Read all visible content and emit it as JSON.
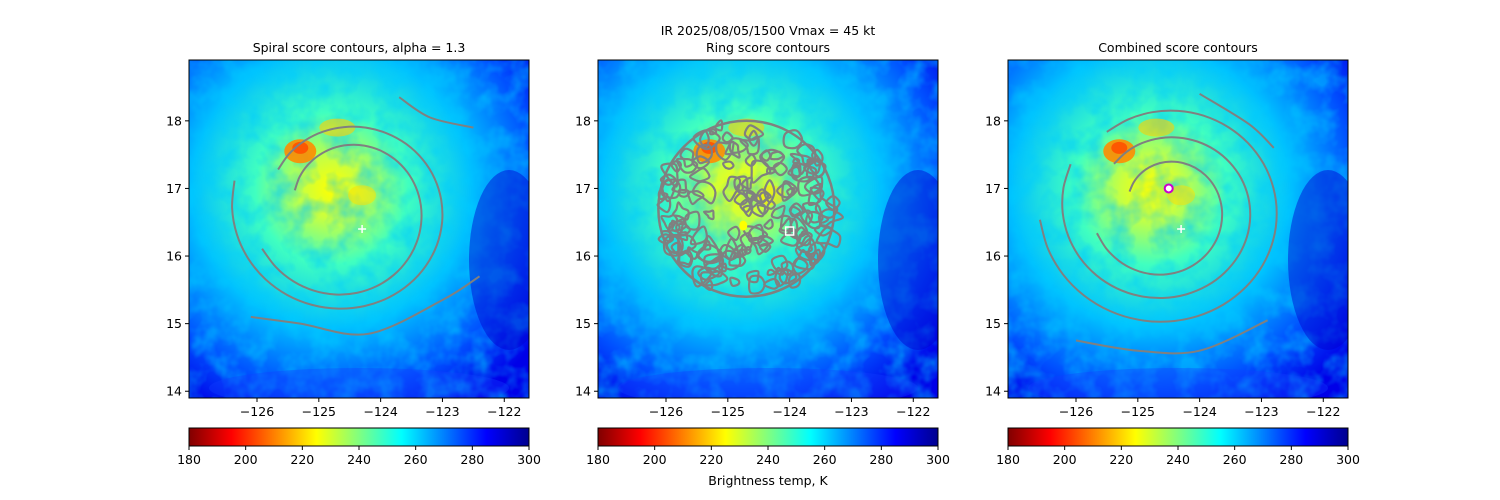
{
  "suptitle": "IR  2025/08/05/1500    Vmax = 45 kt",
  "colorbar_label": "Brightness temp, K",
  "colormap": [
    "#800000",
    "#ff0000",
    "#ff8000",
    "#ffff00",
    "#80ff80",
    "#00ffff",
    "#0080ff",
    "#0000ff",
    "#00008f"
  ],
  "contour_color": "#808080",
  "chart_data": [
    {
      "type": "heatmap",
      "title": "Spiral score contours, alpha =  1.3",
      "xlim": [
        -127.1,
        -121.6
      ],
      "ylim": [
        13.9,
        18.9
      ],
      "xticks": [
        -126,
        -125,
        -124,
        -123,
        -122
      ],
      "yticks": [
        14,
        15,
        16,
        17,
        18
      ],
      "xtick_labels": [
        "−126",
        "−125",
        "−124",
        "−123",
        "−122"
      ],
      "ytick_labels": [
        "14",
        "15",
        "16",
        "17",
        "18"
      ],
      "colorbar": {
        "range": [
          180,
          300
        ],
        "ticks": [
          180,
          200,
          220,
          240,
          260,
          280,
          300
        ],
        "tick_labels": [
          "180",
          "200",
          "220",
          "240",
          "260",
          "280",
          "300"
        ]
      },
      "markers": [
        {
          "type": "plus",
          "lon": -124.3,
          "lat": 16.4,
          "color": "#ffffff"
        }
      ]
    },
    {
      "type": "heatmap",
      "title": "Ring score contours",
      "xlim": [
        -127.1,
        -121.6
      ],
      "ylim": [
        13.9,
        18.9
      ],
      "xticks": [
        -126,
        -125,
        -124,
        -123,
        -122
      ],
      "yticks": [
        14,
        15,
        16,
        17,
        18
      ],
      "xtick_labels": [
        "−126",
        "−125",
        "−124",
        "−123",
        "−122"
      ],
      "ytick_labels": [
        "14",
        "15",
        "16",
        "17",
        "18"
      ],
      "colorbar": {
        "range": [
          180,
          300
        ],
        "ticks": [
          180,
          200,
          220,
          240,
          260,
          280,
          300
        ],
        "tick_labels": [
          "180",
          "200",
          "220",
          "240",
          "260",
          "280",
          "300"
        ]
      },
      "markers": [
        {
          "type": "square",
          "lon": -124.0,
          "lat": 16.37,
          "color": "#ffffff"
        }
      ]
    },
    {
      "type": "heatmap",
      "title": "Combined score contours",
      "xlim": [
        -127.1,
        -121.6
      ],
      "ylim": [
        13.9,
        18.9
      ],
      "xticks": [
        -126,
        -125,
        -124,
        -123,
        -122
      ],
      "yticks": [
        14,
        15,
        16,
        17,
        18
      ],
      "xtick_labels": [
        "−126",
        "−125",
        "−124",
        "−123",
        "−122"
      ],
      "ytick_labels": [
        "14",
        "15",
        "16",
        "17",
        "18"
      ],
      "colorbar": {
        "range": [
          180,
          300
        ],
        "ticks": [
          180,
          200,
          220,
          240,
          260,
          280,
          300
        ],
        "tick_labels": [
          "180",
          "200",
          "220",
          "240",
          "260",
          "280",
          "300"
        ]
      },
      "markers": [
        {
          "type": "plus",
          "lon": -124.3,
          "lat": 16.4,
          "color": "#ffffff"
        },
        {
          "type": "circle",
          "lon": -124.5,
          "lat": 17.0,
          "color": "#cc00cc"
        }
      ]
    }
  ]
}
